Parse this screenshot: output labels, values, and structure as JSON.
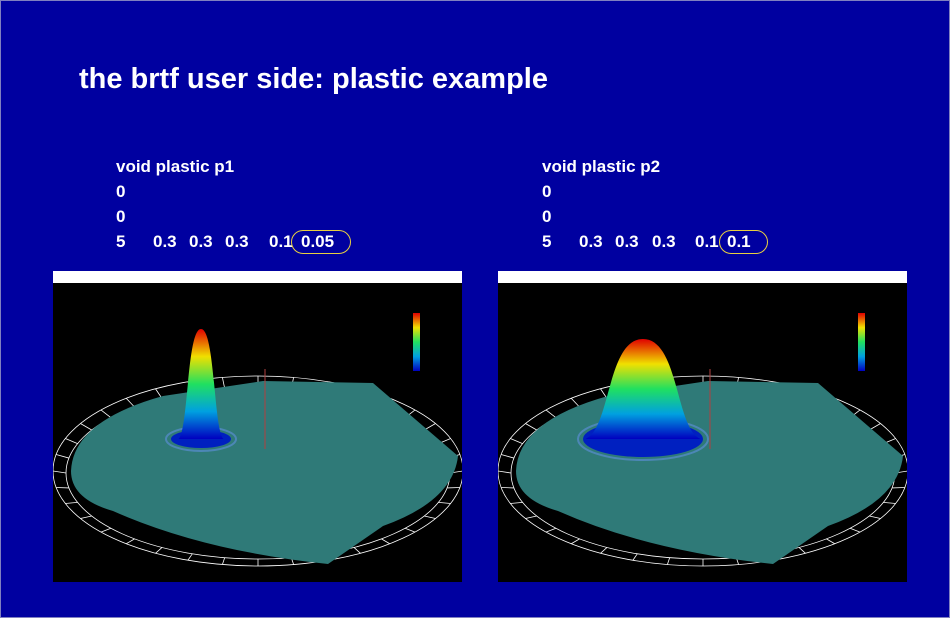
{
  "title": "the brtf user side: plastic example",
  "panels": [
    {
      "lines": [
        "void plastic p1",
        "0",
        "0"
      ],
      "params": [
        "5",
        "0.3",
        "0.3",
        "0.3",
        "0.1",
        "0.05"
      ]
    },
    {
      "lines": [
        "void plastic p2",
        "0",
        "0"
      ],
      "params": [
        "5",
        "0.3",
        "0.3",
        "0.3",
        "0.1",
        "0.1"
      ]
    }
  ]
}
